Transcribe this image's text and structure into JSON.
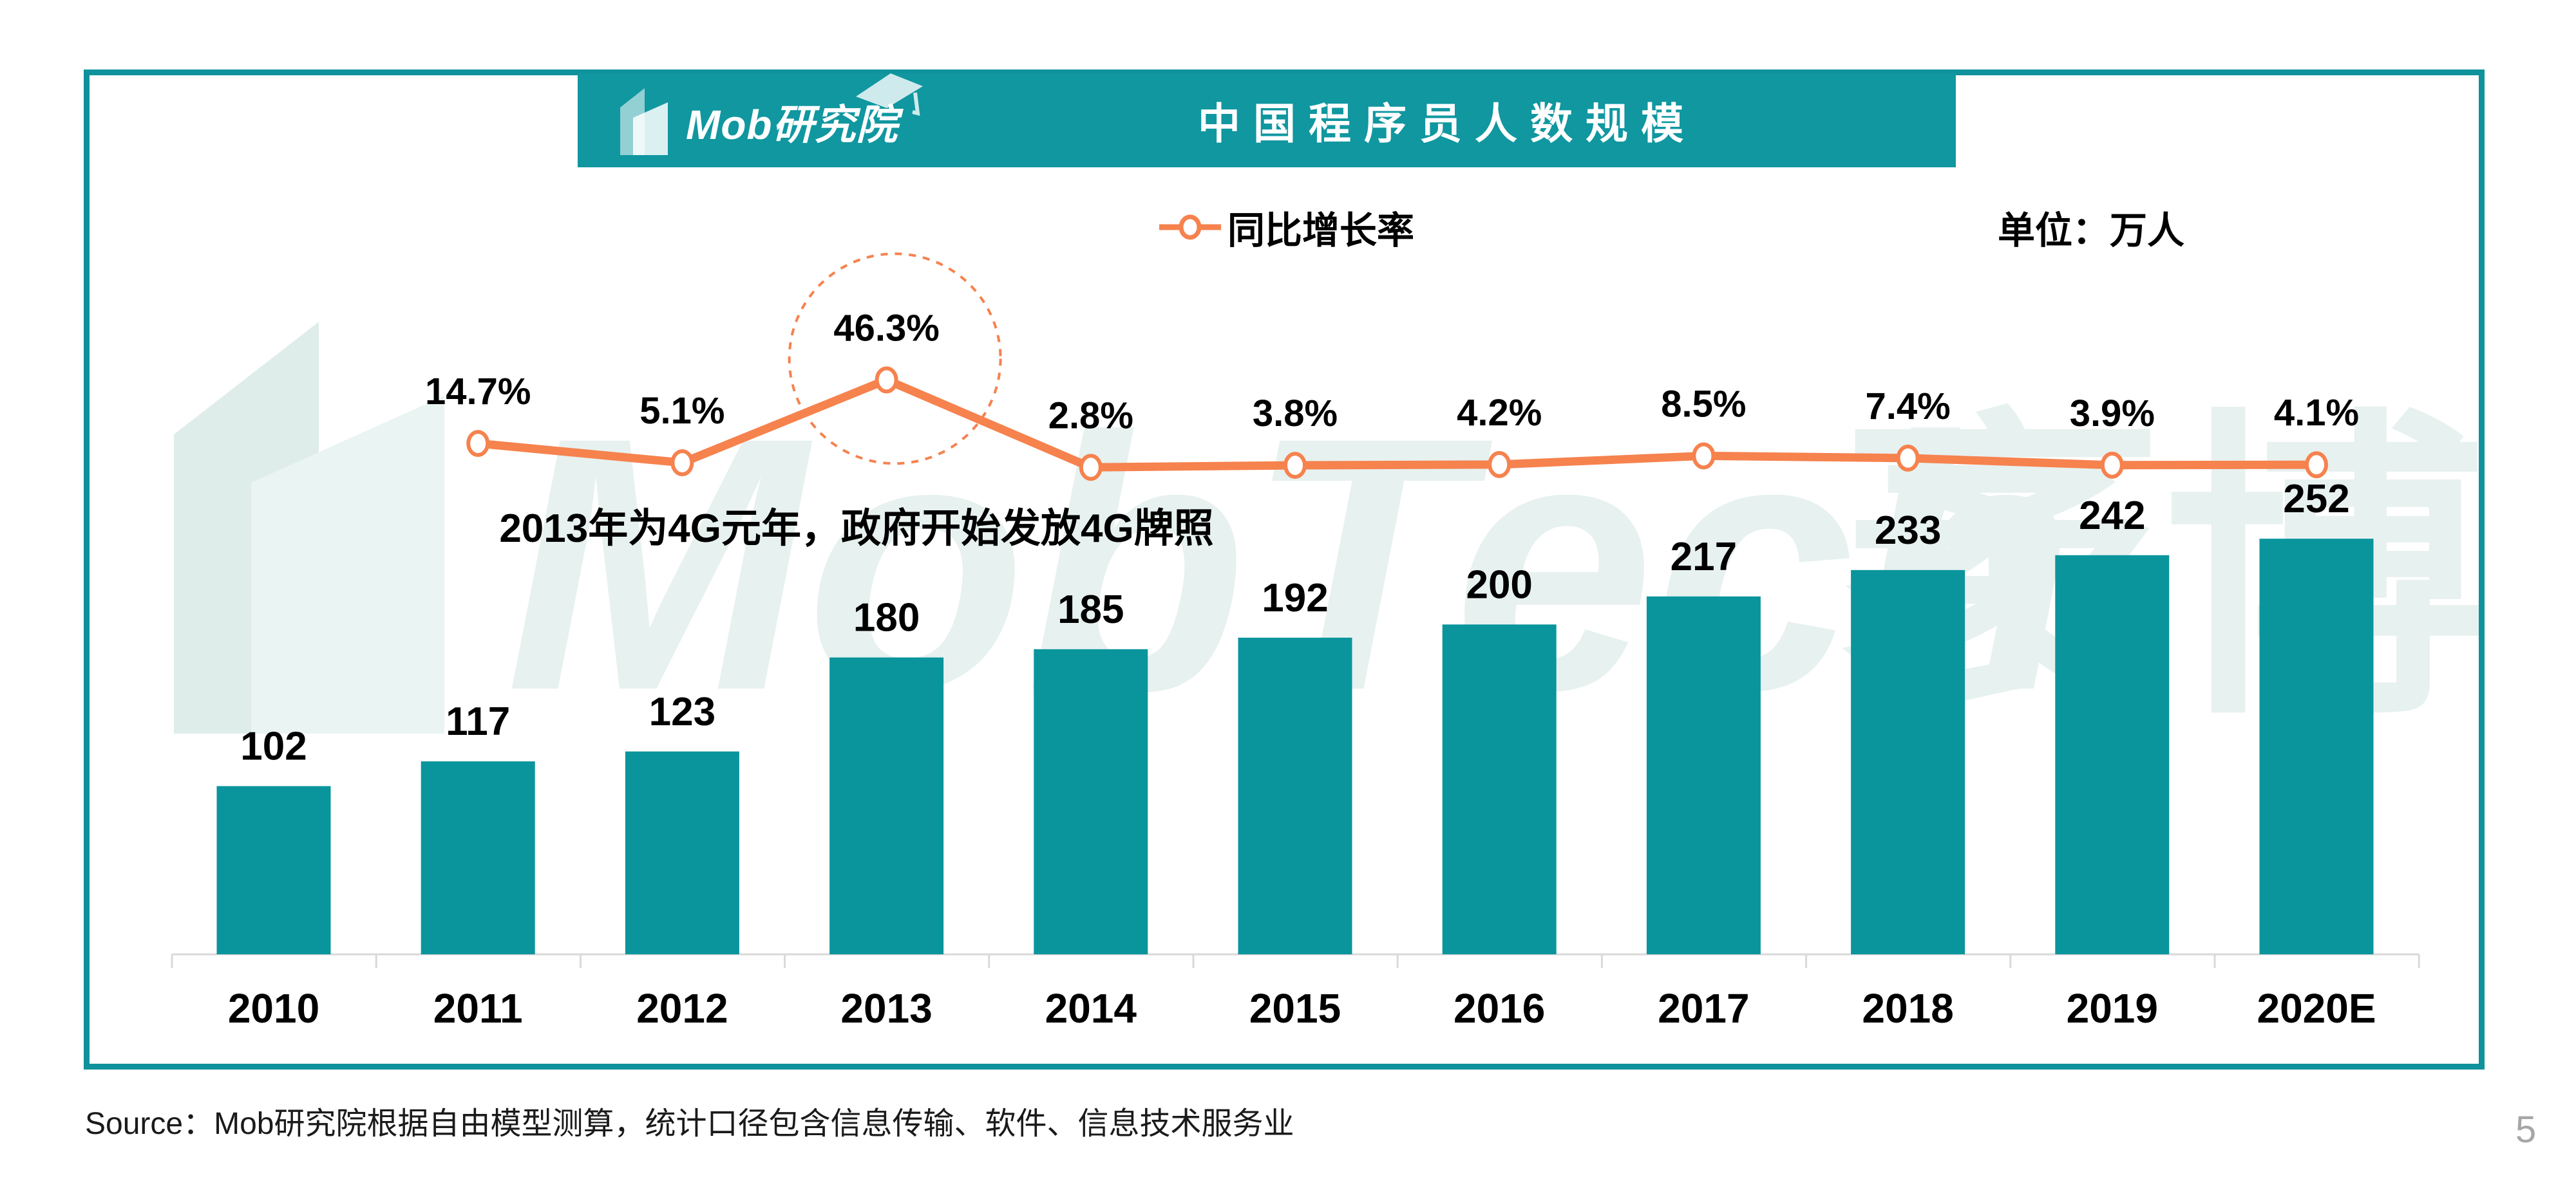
{
  "header": {
    "logo_text": "Mob研究院",
    "title": "中国程序员人数规模"
  },
  "legend": {
    "growth_label": "同比增长率"
  },
  "unit_label": "单位：万人",
  "annotation": "2013年为4G元年，政府开始发放4G牌照",
  "source_note": "Source：Mob研究院根据自由模型测算，统计口径包含信息传输、软件、信息技术服务业",
  "page_number": "5",
  "watermark": {
    "latin": "MobTech",
    "cjk": "袤博"
  },
  "colors": {
    "bar_teal": "#0A959D",
    "banner_teal": "#1097A0",
    "frame_teal": "#0F929B",
    "line_orange": "#F6824E",
    "axis_gray": "#D9D9D9",
    "watermark_tint": "#E7F1EF",
    "watermark_tint_dark": "#DFEDEA",
    "label_black": "#000000",
    "page_gray": "#A6A6A6"
  },
  "chart_data": {
    "type": "bar",
    "title": "中国程序员人数规模",
    "unit": "万人",
    "categories": [
      "2010",
      "2011",
      "2012",
      "2013",
      "2014",
      "2015",
      "2016",
      "2017",
      "2018",
      "2019",
      "2020E"
    ],
    "series": [
      {
        "type": "bar",
        "values": [
          102,
          117,
          123,
          180,
          185,
          192,
          200,
          217,
          233,
          242,
          252
        ]
      },
      {
        "type": "line",
        "name": "同比增长率",
        "unit": "%",
        "values": [
          null,
          14.7,
          5.1,
          46.3,
          2.8,
          3.8,
          4.2,
          8.5,
          7.4,
          3.9,
          4.1
        ]
      }
    ],
    "highlight": {
      "category": "2013",
      "value_label": "46.3%"
    },
    "annotation": "2013年为4G元年，政府开始发放4G牌照",
    "legend_position": "top-center",
    "grid": false,
    "y_axis_visible": false
  }
}
